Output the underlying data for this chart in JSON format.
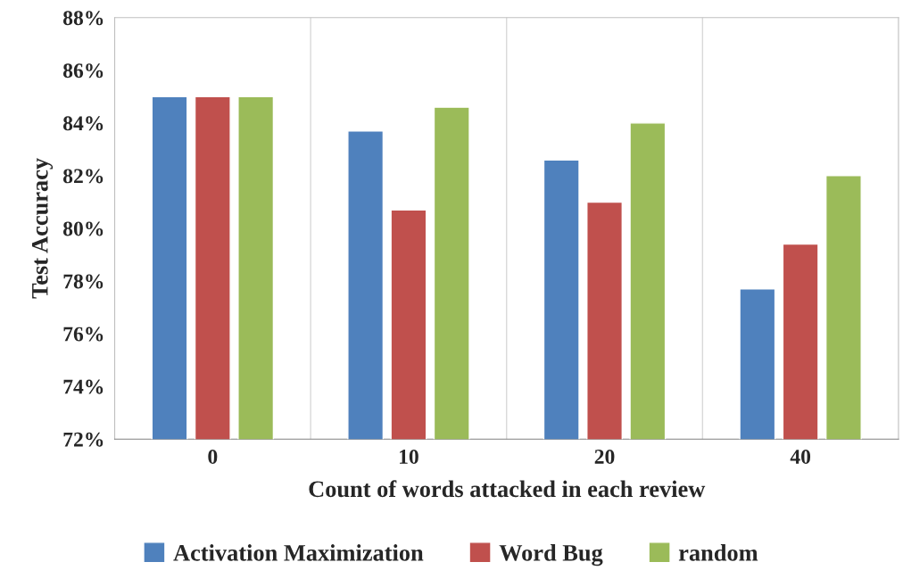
{
  "chart_data": {
    "type": "bar",
    "xlabel": "Count of words attacked in each review",
    "ylabel": "Test Accuracy",
    "categories": [
      "0",
      "10",
      "20",
      "40"
    ],
    "series": [
      {
        "name": "Activation Maximization",
        "color": "#4f81bd",
        "values": [
          85.0,
          83.7,
          82.6,
          77.7
        ]
      },
      {
        "name": "Word Bug",
        "color": "#c0504d",
        "values": [
          85.0,
          80.7,
          81.0,
          79.4
        ]
      },
      {
        "name": "random",
        "color": "#9bbb59",
        "values": [
          85.0,
          84.6,
          84.0,
          82.0
        ]
      }
    ],
    "ylim": [
      72,
      88
    ],
    "yticks": [
      {
        "value": 72,
        "label": "72%"
      },
      {
        "value": 74,
        "label": "74%"
      },
      {
        "value": 76,
        "label": "76%"
      },
      {
        "value": 78,
        "label": "78%"
      },
      {
        "value": 80,
        "label": "80%"
      },
      {
        "value": 82,
        "label": "82%"
      },
      {
        "value": 84,
        "label": "84%"
      },
      {
        "value": 86,
        "label": "86%"
      },
      {
        "value": 88,
        "label": "88%"
      }
    ],
    "grid": "x",
    "legend": "bottom"
  }
}
